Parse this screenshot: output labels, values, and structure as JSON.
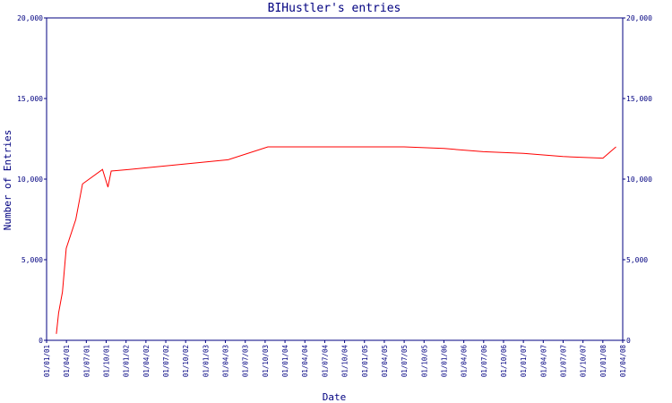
{
  "chart_data": {
    "type": "line",
    "title": "BIHustler's entries",
    "xlabel": "Date",
    "ylabel": "Number of Entries",
    "ylim": [
      0,
      20000
    ],
    "y_ticks": [
      0,
      5000,
      10000,
      15000,
      20000
    ],
    "y_tick_labels": [
      "0",
      "5,000",
      "10,000",
      "15,000",
      "20,000"
    ],
    "x_tick_labels": [
      "01/01/01",
      "01/04/01",
      "01/07/01",
      "01/10/01",
      "01/01/02",
      "01/04/02",
      "01/07/02",
      "01/10/02",
      "01/01/03",
      "01/04/03",
      "01/07/03",
      "01/10/03",
      "01/01/04",
      "01/04/04",
      "01/07/04",
      "01/10/04",
      "01/01/05",
      "01/04/05",
      "01/07/05",
      "01/10/05",
      "01/01/06",
      "01/04/06",
      "01/07/06",
      "01/10/06",
      "01/01/07",
      "01/04/07",
      "01/07/07",
      "01/10/07",
      "01/01/08",
      "01/04/08"
    ],
    "grid": false,
    "line_color": "#ff0000",
    "axis_color": "#000080",
    "series": [
      {
        "x": [
          "2001-02-15",
          "2001-02-25",
          "2001-03-15",
          "2001-04-01",
          "2001-05-15",
          "2001-06-15",
          "2001-09-15",
          "2001-10-10",
          "2001-10-25",
          "2002-01-15",
          "2003-04-15",
          "2003-10-15",
          "2004-01-01",
          "2005-07-01",
          "2006-01-01",
          "2006-07-01",
          "2007-01-01",
          "2007-07-01",
          "2008-01-01",
          "2008-03-01"
        ],
        "values": [
          400,
          1700,
          3000,
          5700,
          7500,
          9700,
          10600,
          9500,
          10500,
          10600,
          11200,
          12000,
          12000,
          12000,
          11900,
          11700,
          11600,
          11400,
          11300,
          12000
        ]
      }
    ]
  }
}
